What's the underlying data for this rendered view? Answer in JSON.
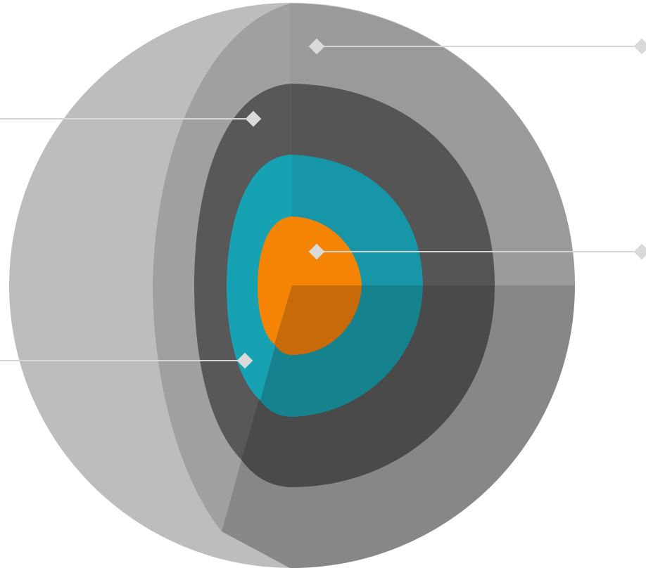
{
  "diagram": {
    "layers": [
      {
        "id": "crust",
        "icon": "shell-layer"
      },
      {
        "id": "mantle",
        "icon": "shell-layer"
      },
      {
        "id": "outer-core",
        "icon": "shell-layer"
      },
      {
        "id": "inner-core",
        "icon": "shell-layer"
      }
    ],
    "markers": [
      {
        "id": "marker-top-right",
        "icon": "diamond-icon",
        "direction": "right"
      },
      {
        "id": "marker-mid-left",
        "icon": "diamond-icon",
        "direction": "left"
      },
      {
        "id": "marker-center-right",
        "icon": "diamond-icon",
        "direction": "right"
      },
      {
        "id": "marker-lower-left",
        "icon": "diamond-icon",
        "direction": "left"
      }
    ],
    "colors": {
      "background": "#ffffff",
      "outer_sphere": "#bdbdbd",
      "crust_cut": "#a0a0a0",
      "crust_face_top": "#9a9a9a",
      "crust_face_bottom": "#878787",
      "mantle_cut": "#585858",
      "mantle_face_top": "#555555",
      "mantle_face_bottom": "#4a4a4a",
      "outer_core_cut": "#16a2b3",
      "outer_core_face_top": "#1696a6",
      "outer_core_face_bottom": "#15828e",
      "inner_core_cut": "#f58304",
      "inner_core_face_bottom": "#c96a09",
      "leader_line": "#d6d6d6",
      "marker": "#dadada"
    }
  }
}
